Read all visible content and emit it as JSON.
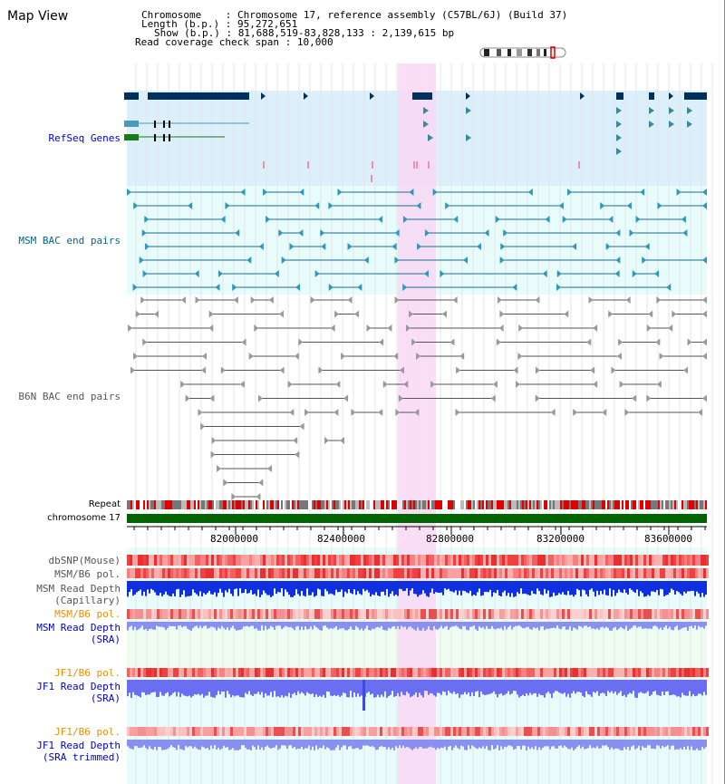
{
  "header": {
    "title": "Map View",
    "chromosome_key": "Chromosome",
    "chromosome_value": "Chromosome 17, reference assembly (C57BL/6J) (Build 37)",
    "length_key": "Length (b.p.)",
    "length_value": "95,272,651",
    "show_key": "Show (b.p.)",
    "show_value": "81,688,519-83,828,133 : 2,139,615 bp",
    "coverage_key": "Read coverage check span",
    "coverage_value": "10,000"
  },
  "tracks": {
    "refseq": "RefSeq Genes",
    "msm_bac": "MSM BAC end pairs",
    "b6n_bac": "B6N BAC end pairs",
    "repeat": "Repeat",
    "chromosome": "chromosome 17",
    "dbsnp": "dbSNP(Mouse)",
    "msm_b6_pol": "MSM/B6 pol.",
    "msm_depth_cap_1": "MSM Read Depth",
    "msm_depth_cap_2": "(Capillary)",
    "msm_b6_pol_2": "MSM/B6 pol.",
    "msm_depth_sra_1": "MSM Read Depth",
    "msm_depth_sra_2": "(SRA)",
    "jf1_b6_pol": "JF1/B6 pol.",
    "jf1_depth_sra_1": "JF1 Read Depth",
    "jf1_depth_sra_2": "(SRA)",
    "jf1_b6_pol_2": "JF1/B6 pol.",
    "jf1_depth_trim_1": "JF1 Read Depth",
    "jf1_depth_trim_2": "(SRA trimmed)"
  },
  "axis": {
    "ticks": [
      "82000000",
      "82400000",
      "82800000",
      "83200000",
      "83600000"
    ]
  },
  "colors": {
    "highlight": "#f8d8f4",
    "refseq_bg": "#dcf0fc",
    "msm_bg": "#e8fcfc",
    "label_blue": "#0000cc",
    "label_teal": "#006688",
    "label_gray": "#555555",
    "label_orange": "#e89000",
    "gene_dark": "#00305c",
    "chrom_green": "#006400"
  }
}
